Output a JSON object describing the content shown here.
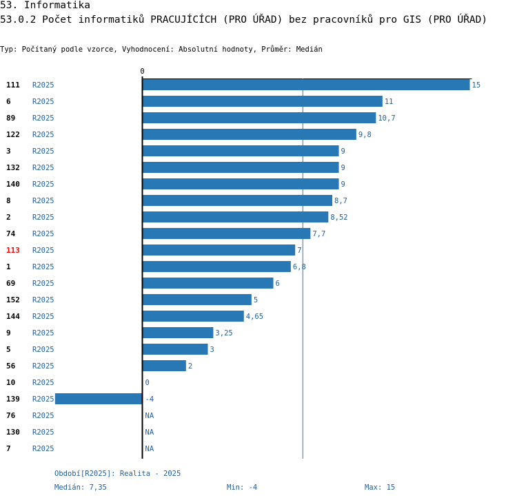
{
  "header": {
    "line1": "53. Informatika",
    "line2": "53.0.2 Počet informatiků PRACUJÍCÍCH (PRO ÚŘAD) bez pracovníků pro GIS (PRO ÚŘAD)",
    "meta": "Typ: Počítaný podle vzorce, Vyhodnocení: Absolutní hodnoty, Průměr: Medián"
  },
  "colors": {
    "bar": "#2878b5",
    "value_text": "#1f5fa3",
    "highlight": "#ff0000",
    "axis": "#000000"
  },
  "chart_data": {
    "type": "bar",
    "orientation": "horizontal",
    "axis_zero_label": "0",
    "xlim": [
      -4,
      15
    ],
    "median": 7.35,
    "series_label": "R2025",
    "highlight_id": "113",
    "rows": [
      {
        "id": "111",
        "label": "R2025",
        "value": 15,
        "text": "15"
      },
      {
        "id": "6",
        "label": "R2025",
        "value": 11,
        "text": "11"
      },
      {
        "id": "89",
        "label": "R2025",
        "value": 10.7,
        "text": "10,7"
      },
      {
        "id": "122",
        "label": "R2025",
        "value": 9.8,
        "text": "9,8"
      },
      {
        "id": "3",
        "label": "R2025",
        "value": 9,
        "text": "9"
      },
      {
        "id": "132",
        "label": "R2025",
        "value": 9,
        "text": "9"
      },
      {
        "id": "140",
        "label": "R2025",
        "value": 9,
        "text": "9"
      },
      {
        "id": "8",
        "label": "R2025",
        "value": 8.7,
        "text": "8,7"
      },
      {
        "id": "2",
        "label": "R2025",
        "value": 8.52,
        "text": "8,52"
      },
      {
        "id": "74",
        "label": "R2025",
        "value": 7.7,
        "text": "7,7"
      },
      {
        "id": "113",
        "label": "R2025",
        "value": 7,
        "text": "7"
      },
      {
        "id": "1",
        "label": "R2025",
        "value": 6.8,
        "text": "6,8"
      },
      {
        "id": "69",
        "label": "R2025",
        "value": 6,
        "text": "6"
      },
      {
        "id": "152",
        "label": "R2025",
        "value": 5,
        "text": "5"
      },
      {
        "id": "144",
        "label": "R2025",
        "value": 4.65,
        "text": "4,65"
      },
      {
        "id": "9",
        "label": "R2025",
        "value": 3.25,
        "text": "3,25"
      },
      {
        "id": "5",
        "label": "R2025",
        "value": 3,
        "text": "3"
      },
      {
        "id": "56",
        "label": "R2025",
        "value": 2,
        "text": "2"
      },
      {
        "id": "10",
        "label": "R2025",
        "value": 0,
        "text": "0"
      },
      {
        "id": "139",
        "label": "R2025",
        "value": -4,
        "text": "-4"
      },
      {
        "id": "76",
        "label": "R2025",
        "value": null,
        "text": "NA"
      },
      {
        "id": "130",
        "label": "R2025",
        "value": null,
        "text": "NA"
      },
      {
        "id": "7",
        "label": "R2025",
        "value": null,
        "text": "NA"
      }
    ]
  },
  "footer": {
    "period": "Období[R2025]: Realita - 2025",
    "median": "Medián: 7,35",
    "min": "Min: -4",
    "max": "Max: 15"
  }
}
